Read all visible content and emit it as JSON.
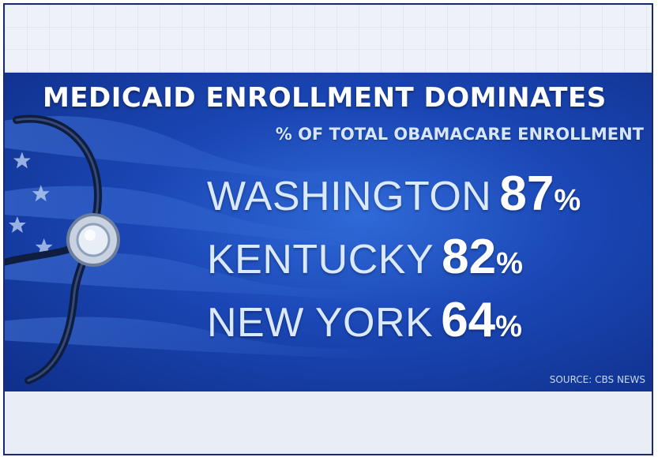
{
  "graphic": {
    "title": "MEDICAID ENROLLMENT DOMINATES",
    "subtitle": "% OF TOTAL OBAMACARE ENROLLMENT",
    "source": "SOURCE: CBS NEWS",
    "colors": {
      "banner": "#1a46b4",
      "text": "#ffffff",
      "state_text": "#dbe9ff"
    },
    "icons": [
      "stethoscope-icon",
      "flag-stars-icon"
    ]
  },
  "rows": [
    {
      "state": "WASHINGTON",
      "value": "87",
      "unit": "%"
    },
    {
      "state": "KENTUCKY",
      "value": "82",
      "unit": "%"
    },
    {
      "state": "NEW YORK",
      "value": "64",
      "unit": "%"
    }
  ]
}
